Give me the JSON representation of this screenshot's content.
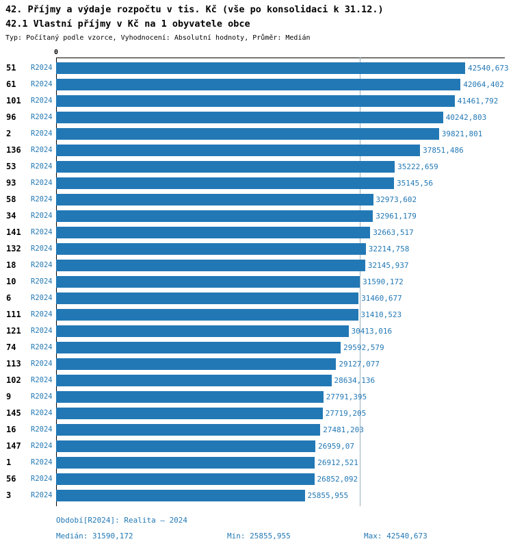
{
  "header": {
    "title": "42. Příjmy a výdaje rozpočtu v tis. Kč (vše po konsolidaci k 31.12.)",
    "subtitle": "42.1 Vlastní příjmy v Kč na 1 obyvatele obce",
    "meta": "Typ: Počítaný podle vzorce, Vyhodnocení: Absolutní hodnoty, Průměr: Medián"
  },
  "chart_data": {
    "type": "bar",
    "orientation": "horizontal",
    "axis_zero_label": "0",
    "series_label": "R2024",
    "categories": [
      "51",
      "61",
      "101",
      "96",
      "2",
      "136",
      "53",
      "93",
      "58",
      "34",
      "141",
      "132",
      "18",
      "10",
      "6",
      "111",
      "121",
      "74",
      "113",
      "102",
      "9",
      "145",
      "16",
      "147",
      "1",
      "56",
      "3"
    ],
    "values": [
      42540.673,
      42064.402,
      41461.792,
      40242.803,
      39821.801,
      37851.486,
      35222.659,
      35145.56,
      32973.602,
      32961.179,
      32663.517,
      32214.758,
      32145.937,
      31590.172,
      31460.677,
      31410.523,
      30413.016,
      29592.579,
      29127.077,
      28634.136,
      27791.395,
      27719.205,
      27481.203,
      26959.07,
      26912.521,
      26852.092,
      25855.955
    ],
    "value_labels": [
      "42540,673",
      "42064,402",
      "41461,792",
      "40242,803",
      "39821,801",
      "37851,486",
      "35222,659",
      "35145,56",
      "32973,602",
      "32961,179",
      "32663,517",
      "32214,758",
      "32145,937",
      "31590,172",
      "31460,677",
      "31410,523",
      "30413,016",
      "29592,579",
      "29127,077",
      "28634,136",
      "27791,395",
      "27719,205",
      "27481,203",
      "26959,07",
      "26912,521",
      "26852,092",
      "25855,955"
    ],
    "median": 31590.172,
    "xlim": [
      0,
      42540.673
    ],
    "bar_color": "#2278b5",
    "median_line": true,
    "legend_position": "none",
    "grid": false
  },
  "footer": {
    "period": "Období[R2024]: Realita – 2024",
    "median": "Medián: 31590,172",
    "min": "Min: 25855,955",
    "max": "Max: 42540,673"
  }
}
